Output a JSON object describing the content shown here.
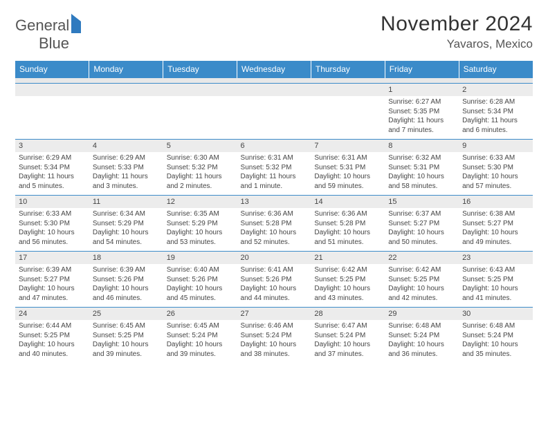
{
  "brand": {
    "name1": "General",
    "name2": "Blue"
  },
  "header": {
    "title": "November 2024",
    "location": "Yavaros, Mexico"
  },
  "colors": {
    "header_bg": "#3b8bc9",
    "header_text": "#ffffff",
    "daynum_bg": "#ececec",
    "border": "#3b8bc9",
    "text": "#444444"
  },
  "layout": {
    "columns": 7,
    "rows": 5
  },
  "weekdays": [
    "Sunday",
    "Monday",
    "Tuesday",
    "Wednesday",
    "Thursday",
    "Friday",
    "Saturday"
  ],
  "days": [
    null,
    null,
    null,
    null,
    null,
    {
      "n": "1",
      "sunrise": "Sunrise: 6:27 AM",
      "sunset": "Sunset: 5:35 PM",
      "day": "Daylight: 11 hours and 7 minutes."
    },
    {
      "n": "2",
      "sunrise": "Sunrise: 6:28 AM",
      "sunset": "Sunset: 5:34 PM",
      "day": "Daylight: 11 hours and 6 minutes."
    },
    {
      "n": "3",
      "sunrise": "Sunrise: 6:29 AM",
      "sunset": "Sunset: 5:34 PM",
      "day": "Daylight: 11 hours and 5 minutes."
    },
    {
      "n": "4",
      "sunrise": "Sunrise: 6:29 AM",
      "sunset": "Sunset: 5:33 PM",
      "day": "Daylight: 11 hours and 3 minutes."
    },
    {
      "n": "5",
      "sunrise": "Sunrise: 6:30 AM",
      "sunset": "Sunset: 5:32 PM",
      "day": "Daylight: 11 hours and 2 minutes."
    },
    {
      "n": "6",
      "sunrise": "Sunrise: 6:31 AM",
      "sunset": "Sunset: 5:32 PM",
      "day": "Daylight: 11 hours and 1 minute."
    },
    {
      "n": "7",
      "sunrise": "Sunrise: 6:31 AM",
      "sunset": "Sunset: 5:31 PM",
      "day": "Daylight: 10 hours and 59 minutes."
    },
    {
      "n": "8",
      "sunrise": "Sunrise: 6:32 AM",
      "sunset": "Sunset: 5:31 PM",
      "day": "Daylight: 10 hours and 58 minutes."
    },
    {
      "n": "9",
      "sunrise": "Sunrise: 6:33 AM",
      "sunset": "Sunset: 5:30 PM",
      "day": "Daylight: 10 hours and 57 minutes."
    },
    {
      "n": "10",
      "sunrise": "Sunrise: 6:33 AM",
      "sunset": "Sunset: 5:30 PM",
      "day": "Daylight: 10 hours and 56 minutes."
    },
    {
      "n": "11",
      "sunrise": "Sunrise: 6:34 AM",
      "sunset": "Sunset: 5:29 PM",
      "day": "Daylight: 10 hours and 54 minutes."
    },
    {
      "n": "12",
      "sunrise": "Sunrise: 6:35 AM",
      "sunset": "Sunset: 5:29 PM",
      "day": "Daylight: 10 hours and 53 minutes."
    },
    {
      "n": "13",
      "sunrise": "Sunrise: 6:36 AM",
      "sunset": "Sunset: 5:28 PM",
      "day": "Daylight: 10 hours and 52 minutes."
    },
    {
      "n": "14",
      "sunrise": "Sunrise: 6:36 AM",
      "sunset": "Sunset: 5:28 PM",
      "day": "Daylight: 10 hours and 51 minutes."
    },
    {
      "n": "15",
      "sunrise": "Sunrise: 6:37 AM",
      "sunset": "Sunset: 5:27 PM",
      "day": "Daylight: 10 hours and 50 minutes."
    },
    {
      "n": "16",
      "sunrise": "Sunrise: 6:38 AM",
      "sunset": "Sunset: 5:27 PM",
      "day": "Daylight: 10 hours and 49 minutes."
    },
    {
      "n": "17",
      "sunrise": "Sunrise: 6:39 AM",
      "sunset": "Sunset: 5:27 PM",
      "day": "Daylight: 10 hours and 47 minutes."
    },
    {
      "n": "18",
      "sunrise": "Sunrise: 6:39 AM",
      "sunset": "Sunset: 5:26 PM",
      "day": "Daylight: 10 hours and 46 minutes."
    },
    {
      "n": "19",
      "sunrise": "Sunrise: 6:40 AM",
      "sunset": "Sunset: 5:26 PM",
      "day": "Daylight: 10 hours and 45 minutes."
    },
    {
      "n": "20",
      "sunrise": "Sunrise: 6:41 AM",
      "sunset": "Sunset: 5:26 PM",
      "day": "Daylight: 10 hours and 44 minutes."
    },
    {
      "n": "21",
      "sunrise": "Sunrise: 6:42 AM",
      "sunset": "Sunset: 5:25 PM",
      "day": "Daylight: 10 hours and 43 minutes."
    },
    {
      "n": "22",
      "sunrise": "Sunrise: 6:42 AM",
      "sunset": "Sunset: 5:25 PM",
      "day": "Daylight: 10 hours and 42 minutes."
    },
    {
      "n": "23",
      "sunrise": "Sunrise: 6:43 AM",
      "sunset": "Sunset: 5:25 PM",
      "day": "Daylight: 10 hours and 41 minutes."
    },
    {
      "n": "24",
      "sunrise": "Sunrise: 6:44 AM",
      "sunset": "Sunset: 5:25 PM",
      "day": "Daylight: 10 hours and 40 minutes."
    },
    {
      "n": "25",
      "sunrise": "Sunrise: 6:45 AM",
      "sunset": "Sunset: 5:25 PM",
      "day": "Daylight: 10 hours and 39 minutes."
    },
    {
      "n": "26",
      "sunrise": "Sunrise: 6:45 AM",
      "sunset": "Sunset: 5:24 PM",
      "day": "Daylight: 10 hours and 39 minutes."
    },
    {
      "n": "27",
      "sunrise": "Sunrise: 6:46 AM",
      "sunset": "Sunset: 5:24 PM",
      "day": "Daylight: 10 hours and 38 minutes."
    },
    {
      "n": "28",
      "sunrise": "Sunrise: 6:47 AM",
      "sunset": "Sunset: 5:24 PM",
      "day": "Daylight: 10 hours and 37 minutes."
    },
    {
      "n": "29",
      "sunrise": "Sunrise: 6:48 AM",
      "sunset": "Sunset: 5:24 PM",
      "day": "Daylight: 10 hours and 36 minutes."
    },
    {
      "n": "30",
      "sunrise": "Sunrise: 6:48 AM",
      "sunset": "Sunset: 5:24 PM",
      "day": "Daylight: 10 hours and 35 minutes."
    }
  ]
}
